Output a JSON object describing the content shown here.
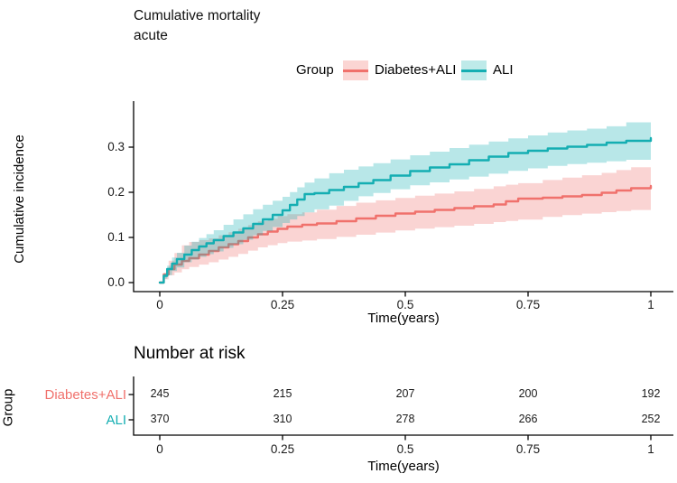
{
  "title": {
    "line1": "Cumulative mortality",
    "line2": "acute"
  },
  "legend": {
    "label": "Group",
    "items": [
      {
        "name": "Diabetes+ALI",
        "line_color": "#F0716C",
        "band_color": "#FBD5D3"
      },
      {
        "name": "ALI",
        "line_color": "#14AEB2",
        "band_color": "#BEEAE9"
      }
    ]
  },
  "chart_data": {
    "type": "line",
    "subtype": "step-cumulative-incidence-with-ci-bands",
    "title": "Cumulative mortality acute",
    "xlabel": "Time(years)",
    "ylabel": "Cumulative incidence",
    "xlim": [
      0,
      1
    ],
    "ylim": [
      0,
      0.37
    ],
    "x_ticks": [
      0,
      0.25,
      0.5,
      0.75,
      1
    ],
    "x_tick_labels": [
      "0",
      "0.25",
      "0.5",
      "0.75",
      "1"
    ],
    "y_ticks": [
      0.0,
      0.1,
      0.2,
      0.3
    ],
    "y_tick_labels": [
      "0.0",
      "0.1",
      "0.2",
      "0.3"
    ],
    "legend_position": "top",
    "grid": false,
    "band_opacity": 0.3,
    "series": [
      {
        "name": "Diabetes+ALI",
        "color": "#F0716C",
        "points": [
          [
            0,
            0
          ],
          [
            0.008,
            0.018
          ],
          [
            0.018,
            0.03
          ],
          [
            0.03,
            0.04
          ],
          [
            0.045,
            0.048
          ],
          [
            0.06,
            0.054
          ],
          [
            0.08,
            0.062
          ],
          [
            0.1,
            0.07
          ],
          [
            0.12,
            0.078
          ],
          [
            0.14,
            0.085
          ],
          [
            0.16,
            0.092
          ],
          [
            0.18,
            0.1
          ],
          [
            0.2,
            0.107
          ],
          [
            0.22,
            0.113
          ],
          [
            0.24,
            0.119
          ],
          [
            0.26,
            0.124
          ],
          [
            0.29,
            0.128
          ],
          [
            0.32,
            0.131
          ],
          [
            0.36,
            0.136
          ],
          [
            0.4,
            0.142
          ],
          [
            0.44,
            0.148
          ],
          [
            0.48,
            0.153
          ],
          [
            0.52,
            0.157
          ],
          [
            0.56,
            0.161
          ],
          [
            0.6,
            0.165
          ],
          [
            0.64,
            0.169
          ],
          [
            0.68,
            0.173
          ],
          [
            0.705,
            0.18
          ],
          [
            0.73,
            0.186
          ],
          [
            0.78,
            0.188
          ],
          [
            0.82,
            0.191
          ],
          [
            0.86,
            0.194
          ],
          [
            0.9,
            0.199
          ],
          [
            0.93,
            0.204
          ],
          [
            0.96,
            0.209
          ],
          [
            1,
            0.214
          ]
        ],
        "band": [
          [
            0,
            0,
            0
          ],
          [
            0.02,
            0.018,
            0.054
          ],
          [
            0.05,
            0.032,
            0.088
          ],
          [
            0.1,
            0.045,
            0.098
          ],
          [
            0.15,
            0.06,
            0.115
          ],
          [
            0.2,
            0.078,
            0.136
          ],
          [
            0.25,
            0.09,
            0.15
          ],
          [
            0.3,
            0.094,
            0.157
          ],
          [
            0.35,
            0.1,
            0.168
          ],
          [
            0.4,
            0.106,
            0.177
          ],
          [
            0.5,
            0.118,
            0.19
          ],
          [
            0.6,
            0.126,
            0.202
          ],
          [
            0.7,
            0.136,
            0.216
          ],
          [
            0.8,
            0.148,
            0.23
          ],
          [
            0.9,
            0.156,
            0.243
          ],
          [
            1,
            0.164,
            0.264
          ]
        ]
      },
      {
        "name": "ALI",
        "color": "#14AEB2",
        "points": [
          [
            0,
            0
          ],
          [
            0.008,
            0.015
          ],
          [
            0.015,
            0.03
          ],
          [
            0.025,
            0.042
          ],
          [
            0.035,
            0.052
          ],
          [
            0.05,
            0.062
          ],
          [
            0.065,
            0.072
          ],
          [
            0.08,
            0.08
          ],
          [
            0.095,
            0.087
          ],
          [
            0.11,
            0.094
          ],
          [
            0.13,
            0.103
          ],
          [
            0.15,
            0.111
          ],
          [
            0.17,
            0.12
          ],
          [
            0.19,
            0.13
          ],
          [
            0.21,
            0.14
          ],
          [
            0.23,
            0.15
          ],
          [
            0.25,
            0.16
          ],
          [
            0.265,
            0.172
          ],
          [
            0.28,
            0.184
          ],
          [
            0.295,
            0.196
          ],
          [
            0.315,
            0.198
          ],
          [
            0.345,
            0.205
          ],
          [
            0.375,
            0.212
          ],
          [
            0.405,
            0.22
          ],
          [
            0.435,
            0.227
          ],
          [
            0.47,
            0.237
          ],
          [
            0.51,
            0.247
          ],
          [
            0.55,
            0.255
          ],
          [
            0.59,
            0.262
          ],
          [
            0.63,
            0.271
          ],
          [
            0.67,
            0.279
          ],
          [
            0.71,
            0.287
          ],
          [
            0.75,
            0.292
          ],
          [
            0.79,
            0.297
          ],
          [
            0.83,
            0.301
          ],
          [
            0.87,
            0.305
          ],
          [
            0.91,
            0.31
          ],
          [
            0.95,
            0.314
          ],
          [
            1,
            0.32
          ]
        ],
        "band": [
          [
            0,
            0,
            0
          ],
          [
            0.02,
            0.022,
            0.05
          ],
          [
            0.05,
            0.045,
            0.082
          ],
          [
            0.1,
            0.065,
            0.11
          ],
          [
            0.15,
            0.085,
            0.14
          ],
          [
            0.2,
            0.11,
            0.168
          ],
          [
            0.25,
            0.132,
            0.19
          ],
          [
            0.3,
            0.158,
            0.225
          ],
          [
            0.35,
            0.172,
            0.244
          ],
          [
            0.4,
            0.19,
            0.256
          ],
          [
            0.5,
            0.214,
            0.28
          ],
          [
            0.6,
            0.23,
            0.3
          ],
          [
            0.7,
            0.246,
            0.318
          ],
          [
            0.8,
            0.26,
            0.334
          ],
          [
            0.9,
            0.268,
            0.344
          ],
          [
            1,
            0.276,
            0.366
          ]
        ]
      }
    ]
  },
  "risk_table": {
    "title": "Number at risk",
    "axis_label": "Group",
    "xlabel": "Time(years)",
    "x_tick_labels": [
      "0",
      "0.25",
      "0.5",
      "0.75",
      "1"
    ],
    "rows": [
      {
        "label": "Diabetes+ALI",
        "color": "#F0716C",
        "values": [
          "245",
          "215",
          "207",
          "200",
          "192"
        ]
      },
      {
        "label": "ALI",
        "color": "#14AEB2",
        "values": [
          "370",
          "310",
          "278",
          "266",
          "252"
        ]
      }
    ]
  },
  "colors": {
    "axis": "#000000",
    "tick_text": "#1a1a1a"
  }
}
